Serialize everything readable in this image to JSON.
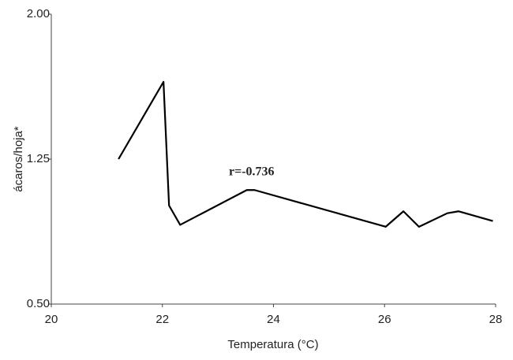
{
  "chart_data": {
    "type": "line",
    "x_label": "Temperatura (°C)",
    "y_label": "ácaros/hoja*",
    "annotation": "r=-0.736",
    "x": [
      21.21,
      22.02,
      22.12,
      22.32,
      23.52,
      23.66,
      26.02,
      26.34,
      26.62,
      27.13,
      27.33,
      27.95
    ],
    "values": [
      1.25,
      1.65,
      1.01,
      0.91,
      1.09,
      1.09,
      0.9,
      0.98,
      0.9,
      0.97,
      0.98,
      0.93
    ],
    "color": "#000000",
    "xlim": [
      20,
      28
    ],
    "xticks": [
      20,
      22,
      24,
      26,
      28
    ],
    "ylim": [
      0.5,
      2.0
    ],
    "yticks": [
      {
        "value": 0.5,
        "label": "0.50"
      },
      {
        "value": 1.25,
        "label": "1.25"
      },
      {
        "value": 2.0,
        "label": "2.00"
      }
    ]
  }
}
